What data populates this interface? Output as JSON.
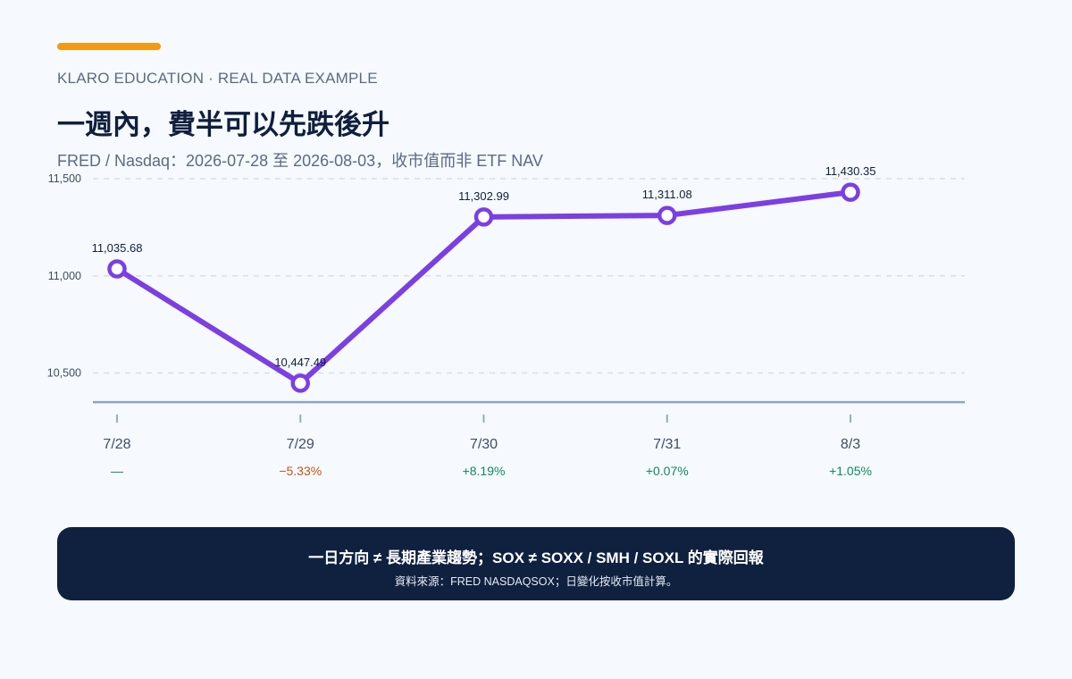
{
  "header": {
    "eyebrow": "KLARO EDUCATION · REAL DATA EXAMPLE",
    "title": "一週內，費半可以先跌後升",
    "subtitle": "FRED / Nasdaq：2026-07-28 至 2026-08-03，收市值而非 ETF NAV"
  },
  "chart_data": {
    "type": "line",
    "categories": [
      "7/28",
      "7/29",
      "7/30",
      "7/31",
      "8/3"
    ],
    "series": [
      {
        "values": [
          11035.68,
          10447.49,
          11302.99,
          11311.08,
          11430.35
        ],
        "value_labels": [
          "11,035.68",
          "10,447.49",
          "11,302.99",
          "11,311.08",
          "11,430.35"
        ]
      }
    ],
    "daily_change": [
      "—",
      "−5.33%",
      "+8.19%",
      "+0.07%",
      "+1.05%"
    ],
    "change_direction": [
      "none",
      "down",
      "up",
      "up",
      "up"
    ],
    "yticks": [
      10500,
      11000,
      11500
    ],
    "ytick_labels": [
      "10,500",
      "11,000",
      "11,500"
    ],
    "ylim": [
      10350,
      11500
    ],
    "grid": true,
    "legend": "none"
  },
  "footer": {
    "headline": "一日方向 ≠ 長期產業趨勢；SOX ≠ SOXX / SMH / SOXL 的實際回報",
    "source": "資料來源：FRED NASDAQSOX；日變化按收市值計算。"
  },
  "colors": {
    "background": "#f6f9fd",
    "accent": "#f29a12",
    "line": "#7b3fe4",
    "axis": "#8aa4c4",
    "grid": "#d7dee8",
    "up": "#0f8a5f",
    "down": "#c2561a",
    "neutral": "#0f8a5f",
    "footer_bg": "#0f213f"
  }
}
